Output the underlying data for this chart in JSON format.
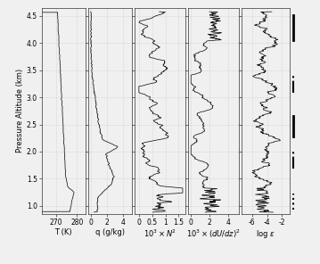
{
  "ylim": [
    0.85,
    4.65
  ],
  "yticks": [
    1.0,
    1.5,
    2.0,
    2.5,
    3.0,
    3.5,
    4.0,
    4.5
  ],
  "ylabel": "Pressure Altitude (km)",
  "panels": [
    {
      "xlabel": "T (K)",
      "xlim": [
        263,
        284
      ],
      "xticks": [
        270,
        280
      ],
      "xticklabels": [
        "270",
        "280"
      ]
    },
    {
      "xlabel": "q (g/kg)",
      "xlim": [
        -0.3,
        5.1
      ],
      "xticks": [
        0,
        2,
        4
      ],
      "xticklabels": [
        "0",
        "2",
        "4"
      ]
    },
    {
      "xlabel": "$10^3 \\times N^2$",
      "xlim": [
        -0.15,
        1.75
      ],
      "xticks": [
        0,
        0.5,
        1.0,
        1.5
      ],
      "xticklabels": [
        "0",
        "0.5",
        "1",
        "1.5"
      ]
    },
    {
      "xlabel": "$10^3 \\times (dU/dz)^2$",
      "xlim": [
        -0.3,
        5.1
      ],
      "xticks": [
        0,
        2,
        4
      ],
      "xticklabels": [
        "0",
        "2",
        "4"
      ]
    },
    {
      "xlabel": "log $\\varepsilon$",
      "xlim": [
        -7.4,
        -1.0
      ],
      "xticks": [
        -6,
        -4,
        -2
      ],
      "xticklabels": [
        "-6",
        "-4",
        "-2"
      ]
    }
  ],
  "right_markers": [
    {
      "y0": 4.05,
      "y1": 4.52,
      "style": "-",
      "lw": 2.0
    },
    {
      "y0": 3.08,
      "y1": 3.42,
      "style": "-.",
      "lw": 1.5
    },
    {
      "y0": 2.28,
      "y1": 2.65,
      "style": "-",
      "lw": 2.0
    },
    {
      "y0": 1.68,
      "y1": 2.02,
      "style": "-.",
      "lw": 1.5
    },
    {
      "y0": 0.93,
      "y1": 1.22,
      "style": ":",
      "lw": 1.5
    }
  ],
  "line_color": "#1a1a1a",
  "bg_color": "#f0f0f0",
  "grid_color": "#bbbbbb",
  "spine_color": "#333333"
}
